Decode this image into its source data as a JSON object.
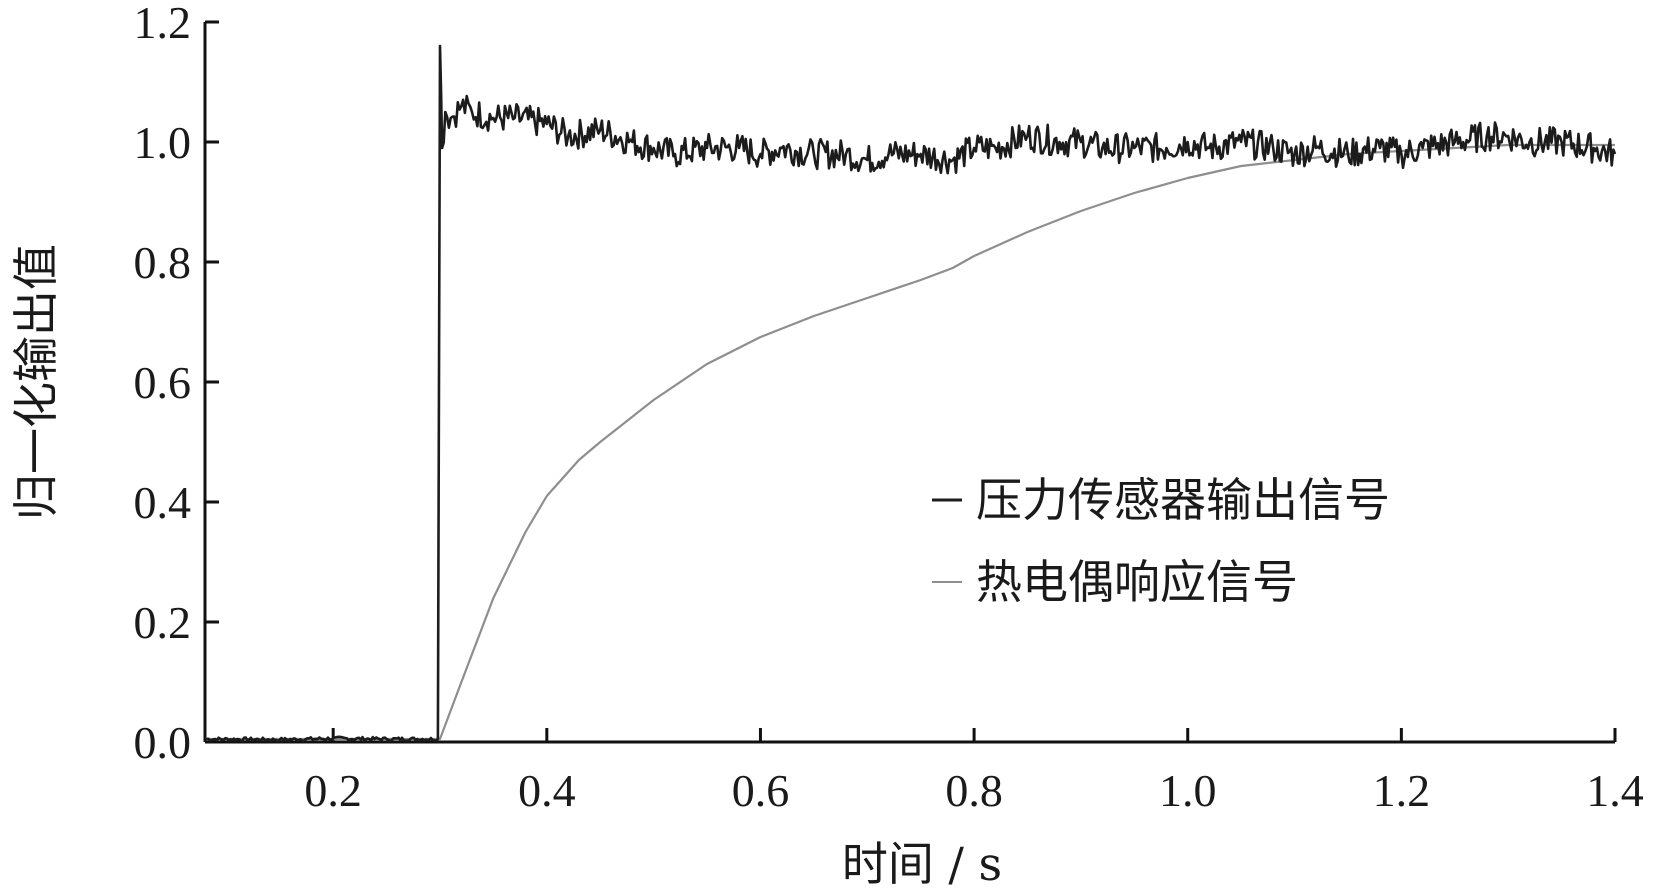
{
  "chart_data": {
    "type": "line",
    "title": "",
    "xlabel": "时间 / s",
    "ylabel": "归一化输出值",
    "xlim": [
      0.08,
      1.4
    ],
    "ylim": [
      0.0,
      1.2
    ],
    "xticks": [
      0.2,
      0.4,
      0.6,
      0.8,
      1.0,
      1.2,
      1.4
    ],
    "xtick_labels": [
      "0.2",
      "0.4",
      "0.6",
      "0.8",
      "1.0",
      "1.2",
      "1.4"
    ],
    "yticks": [
      0.0,
      0.2,
      0.4,
      0.6,
      0.8,
      1.0,
      1.2
    ],
    "ytick_labels": [
      "0.0",
      "0.2",
      "0.4",
      "0.6",
      "0.8",
      "1.0",
      "1.2"
    ],
    "grid": false,
    "legend_position": "center-right",
    "series": [
      {
        "name": "压力传感器输出信号",
        "color": "#1c1c1c",
        "x": [
          0.08,
          0.15,
          0.2,
          0.25,
          0.298,
          0.3,
          0.302,
          0.305,
          0.31,
          0.32,
          0.33,
          0.35,
          0.37,
          0.4,
          0.42,
          0.45,
          0.48,
          0.5,
          0.52,
          0.55,
          0.58,
          0.6,
          0.62,
          0.65,
          0.68,
          0.7,
          0.72,
          0.75,
          0.78,
          0.8,
          0.82,
          0.85,
          0.88,
          0.9,
          0.92,
          0.95,
          0.98,
          1.0,
          1.02,
          1.05,
          1.08,
          1.1,
          1.12,
          1.15,
          1.18,
          1.2,
          1.22,
          1.25,
          1.28,
          1.3,
          1.32,
          1.35,
          1.38,
          1.4
        ],
        "y": [
          0.005,
          0.004,
          0.006,
          0.005,
          0.005,
          1.16,
          0.99,
          1.05,
          1.04,
          1.06,
          1.05,
          1.04,
          1.04,
          1.03,
          1.01,
          1.02,
          1.0,
          0.99,
          0.98,
          0.99,
          0.99,
          0.98,
          0.99,
          0.98,
          0.98,
          0.97,
          0.98,
          0.98,
          0.97,
          0.99,
          0.99,
          1.01,
          1.0,
          1.0,
          0.99,
          0.99,
          0.99,
          1.0,
          0.99,
          1.0,
          0.99,
          0.98,
          0.99,
          0.98,
          0.99,
          0.98,
          0.99,
          1.0,
          1.01,
          1.01,
          1.0,
          1.0,
          0.99,
          0.98
        ],
        "noise_amplitude": 0.025
      },
      {
        "name": "热电偶响应信号",
        "color": "#8e8e8e",
        "x": [
          0.08,
          0.15,
          0.2,
          0.25,
          0.3,
          0.32,
          0.35,
          0.38,
          0.4,
          0.43,
          0.45,
          0.5,
          0.55,
          0.6,
          0.65,
          0.7,
          0.75,
          0.78,
          0.8,
          0.85,
          0.9,
          0.95,
          1.0,
          1.05,
          1.1,
          1.15,
          1.2,
          1.25,
          1.3,
          1.35,
          1.4
        ],
        "y": [
          0.005,
          0.005,
          0.005,
          0.005,
          0.005,
          0.1,
          0.24,
          0.35,
          0.41,
          0.47,
          0.5,
          0.57,
          0.63,
          0.675,
          0.71,
          0.74,
          0.77,
          0.79,
          0.81,
          0.85,
          0.885,
          0.915,
          0.94,
          0.96,
          0.97,
          0.98,
          0.985,
          0.99,
          0.995,
          0.995,
          0.995
        ]
      }
    ]
  }
}
